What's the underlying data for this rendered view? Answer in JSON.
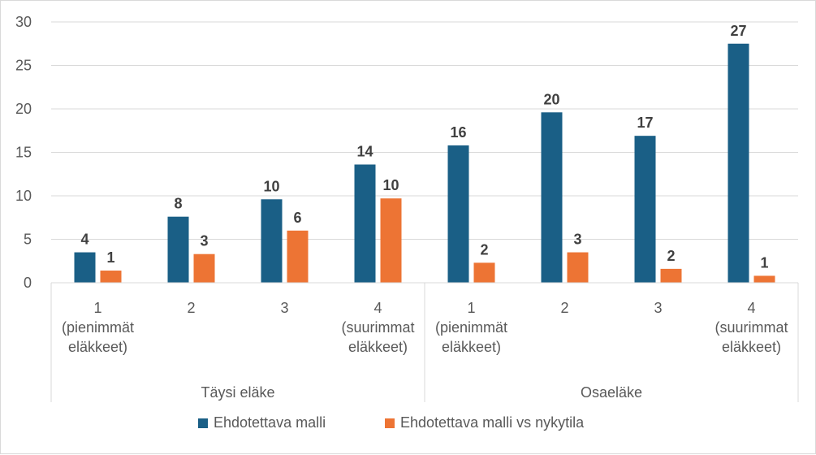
{
  "chart_data": {
    "type": "bar",
    "ylim": [
      0,
      30
    ],
    "yticks": [
      "0",
      "5",
      "10",
      "15",
      "20",
      "25",
      "30"
    ],
    "ytick_values": [
      0,
      5,
      10,
      15,
      20,
      25,
      30
    ],
    "grid": true,
    "legend_position": "bottom",
    "groups": [
      {
        "label": "Täysi eläke",
        "categories": [
          [
            "1",
            "(pienimmät",
            "eläkkeet)"
          ],
          [
            "2"
          ],
          [
            "3"
          ],
          [
            "4",
            "(suurimmat",
            "eläkkeet)"
          ]
        ]
      },
      {
        "label": "Osaeläke",
        "categories": [
          [
            "1",
            "(pienimmät",
            "eläkkeet)"
          ],
          [
            "2"
          ],
          [
            "3"
          ],
          [
            "4",
            "(suurimmat",
            "eläkkeet)"
          ]
        ]
      }
    ],
    "series": [
      {
        "name": "Ehdotettava malli",
        "color": "#1a5f86",
        "values": [
          3.5,
          7.6,
          9.6,
          13.6,
          15.8,
          19.6,
          16.9,
          27.5
        ],
        "labels": [
          "4",
          "8",
          "10",
          "14",
          "16",
          "20",
          "17",
          "27"
        ]
      },
      {
        "name": "Ehdotettava malli vs nykytila",
        "color": "#ed7434",
        "values": [
          1.4,
          3.3,
          6.0,
          9.7,
          2.3,
          3.5,
          1.6,
          0.8
        ],
        "labels": [
          "1",
          "3",
          "6",
          "10",
          "2",
          "3",
          "2",
          "1"
        ]
      }
    ]
  }
}
